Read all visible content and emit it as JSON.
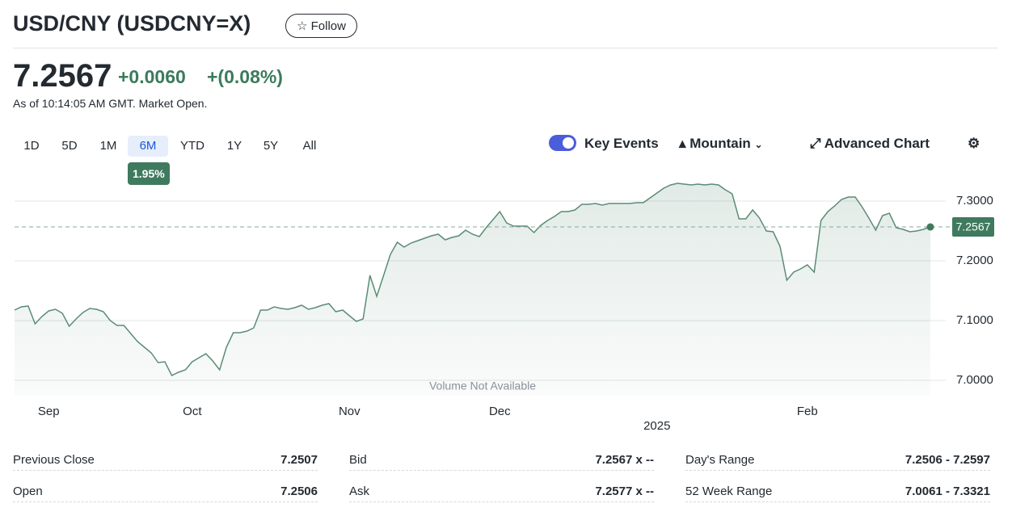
{
  "header": {
    "title": "USD/CNY (USDCNY=X)",
    "follow": "Follow"
  },
  "quote": {
    "price": "7.2567",
    "change": "+0.0060",
    "change_percent": "+(0.08%)",
    "as_of": "As of 10:14:05 AM GMT. Market Open."
  },
  "ranges": [
    "1D",
    "5D",
    "1M",
    "6M",
    "YTD",
    "1Y",
    "5Y",
    "All"
  ],
  "selected_range_badge": "1.95%",
  "toolbar": {
    "key_events": "Key Events",
    "chart_type": "Mountain",
    "advanced": "Advanced Chart"
  },
  "chart_data": {
    "type": "area",
    "note": "Volume Not Available",
    "x_year_label": "2025",
    "categories": [
      null,
      null,
      null,
      null,
      null,
      "Sep",
      null,
      null,
      null,
      null,
      null,
      null,
      null,
      null,
      null,
      null,
      null,
      null,
      null,
      null,
      null,
      null,
      null,
      null,
      null,
      null,
      "Oct",
      null,
      null,
      null,
      null,
      null,
      null,
      null,
      null,
      null,
      null,
      null,
      null,
      null,
      null,
      null,
      null,
      null,
      null,
      null,
      null,
      null,
      null,
      "Nov",
      null,
      null,
      null,
      null,
      null,
      null,
      null,
      null,
      null,
      null,
      null,
      null,
      null,
      null,
      null,
      null,
      null,
      null,
      null,
      null,
      null,
      "Dec",
      null,
      null,
      null,
      null,
      null,
      null,
      null,
      null,
      null,
      null,
      null,
      null,
      null,
      null,
      null,
      null,
      null,
      null,
      null,
      null,
      null,
      null,
      null,
      null,
      null,
      null,
      null,
      null,
      null,
      null,
      null,
      null,
      null,
      null,
      null,
      null,
      null,
      null,
      null,
      null,
      null,
      null,
      null,
      null,
      "Feb",
      null,
      null,
      null,
      null,
      null,
      null,
      null,
      null,
      null,
      null,
      null,
      null,
      null,
      null,
      null,
      null,
      null,
      null
    ],
    "series": [
      {
        "name": "USDCNY=X",
        "color": "#5b8c76",
        "values": [
          7.1176,
          7.123,
          7.1243,
          7.0946,
          7.1068,
          7.1162,
          7.1189,
          7.1122,
          7.0905,
          7.1027,
          7.1135,
          7.1203,
          7.1189,
          7.1149,
          7.1,
          7.0919,
          7.0919,
          7.0784,
          7.0649,
          7.0554,
          7.0459,
          7.0297,
          7.0311,
          7.0081,
          7.0135,
          7.0176,
          7.0311,
          7.0378,
          7.0446,
          7.0324,
          7.0176,
          7.0554,
          7.0797,
          7.0797,
          7.0824,
          7.0878,
          7.1176,
          7.1176,
          7.123,
          7.1203,
          7.1189,
          7.1216,
          7.1257,
          7.1189,
          7.1216,
          7.1257,
          7.1284,
          7.1149,
          7.1176,
          7.1081,
          7.0986,
          7.1027,
          7.1757,
          7.1405,
          7.1757,
          7.2108,
          7.2311,
          7.223,
          7.2297,
          7.2338,
          7.2378,
          7.2419,
          7.2446,
          7.2351,
          7.2392,
          7.2419,
          7.2514,
          7.2446,
          7.2405,
          7.2554,
          7.2689,
          7.2824,
          7.2635,
          7.2581,
          7.2581,
          7.2581,
          7.2473,
          7.2595,
          7.2676,
          7.2743,
          7.2824,
          7.2824,
          7.2851,
          7.2946,
          7.2946,
          7.2959,
          7.2932,
          7.2959,
          7.2959,
          7.2959,
          7.2959,
          7.2973,
          7.2973,
          7.3054,
          7.3135,
          7.3216,
          7.327,
          7.3297,
          7.3284,
          7.327,
          7.3284,
          7.327,
          7.3284,
          7.327,
          7.3189,
          7.3122,
          7.2703,
          7.2703,
          7.2851,
          7.2716,
          7.25,
          7.2486,
          7.2243,
          7.1676,
          7.1811,
          7.1865,
          7.1932,
          7.1811,
          7.2676,
          7.2824,
          7.2919,
          7.3027,
          7.3068,
          7.3068,
          7.2905,
          7.2716,
          7.2514,
          7.2757,
          7.2797,
          7.2554,
          7.2527,
          7.2486,
          7.25,
          7.2527,
          7.2567
        ]
      }
    ],
    "ylim": [
      6.975,
      7.34
    ],
    "yticks": [
      {
        "value": 7.0,
        "label": "7.0000"
      },
      {
        "value": 7.1,
        "label": "7.1000"
      },
      {
        "value": 7.2,
        "label": "7.2000"
      },
      {
        "value": 7.3,
        "label": "7.3000"
      }
    ],
    "grid": true
  },
  "stats": [
    [
      [
        "Previous Close",
        "7.2507"
      ],
      [
        "Open",
        "7.2506"
      ]
    ],
    [
      [
        "Bid",
        "7.2567 x --"
      ],
      [
        "Ask",
        "7.2577 x --"
      ]
    ],
    [
      [
        "Day's Range",
        "7.2506 - 7.2597"
      ],
      [
        "52 Week Range",
        "7.0061 - 7.3321"
      ]
    ]
  ]
}
